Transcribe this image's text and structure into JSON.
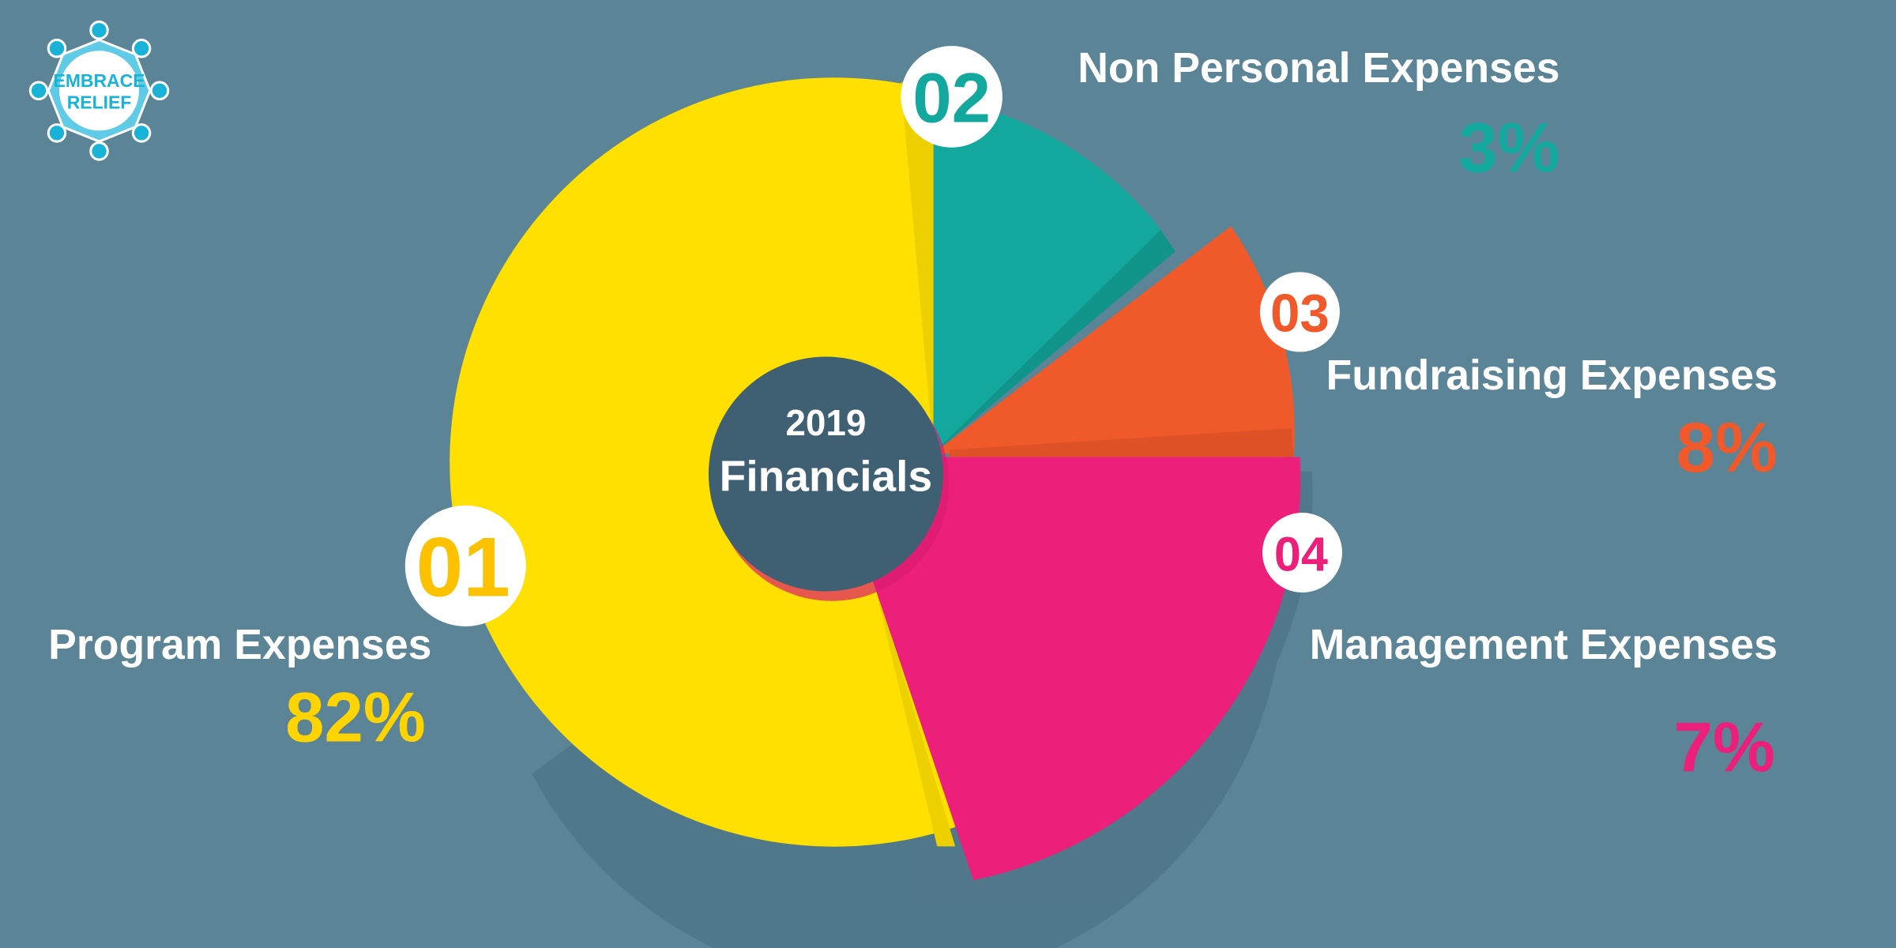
{
  "logo": {
    "text_line1": "EMBRACE",
    "text_line2": "RELIEF",
    "color": "#1ab3d8"
  },
  "colors": {
    "background": "#5b8497",
    "hub": "#3f6072"
  },
  "chart_data": {
    "type": "pie",
    "title": "2019 Financials",
    "title_line1": "2019",
    "title_line2": "Financials",
    "unit": "%",
    "slices": [
      {
        "number": "01",
        "label": "Program Expenses",
        "value": 82,
        "value_label": "82%",
        "color": "#ffe000",
        "text_color": "#fcc200"
      },
      {
        "number": "02",
        "label": "Non Personal Expenses",
        "value": 3,
        "value_label": "3%",
        "color": "#13a89e",
        "text_color": "#13a89e"
      },
      {
        "number": "03",
        "label": "Fundraising Expenses",
        "value": 8,
        "value_label": "8%",
        "color": "#f05a2a",
        "text_color": "#f05a2a"
      },
      {
        "number": "04",
        "label": "Management Expenses",
        "value": 7,
        "value_label": "7%",
        "color": "#ec1f7a",
        "text_color": "#ec1f7a"
      }
    ]
  }
}
